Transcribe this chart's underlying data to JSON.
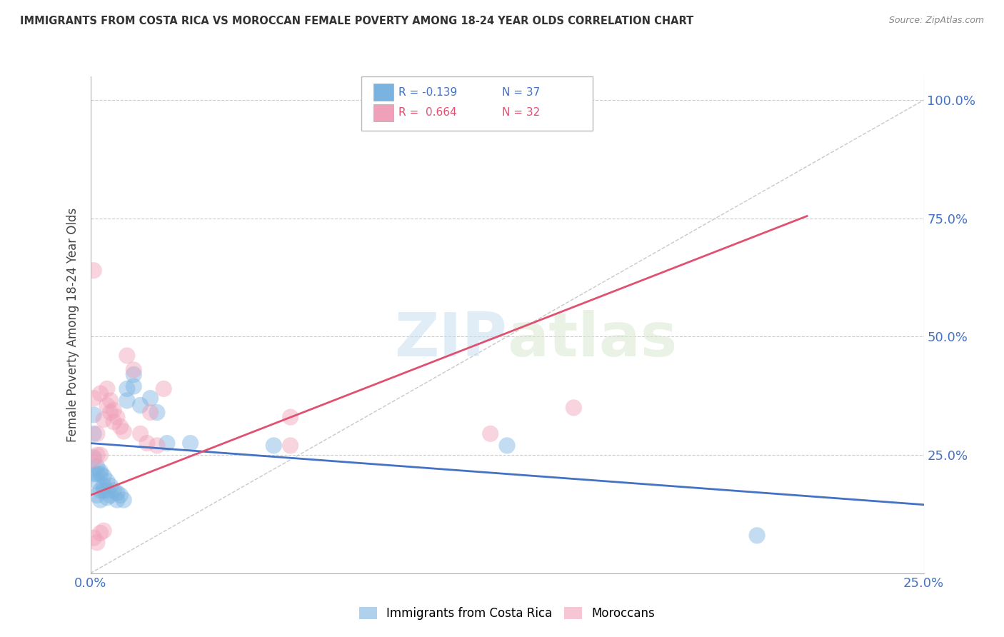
{
  "title": "IMMIGRANTS FROM COSTA RICA VS MOROCCAN FEMALE POVERTY AMONG 18-24 YEAR OLDS CORRELATION CHART",
  "source": "Source: ZipAtlas.com",
  "ylabel": "Female Poverty Among 18-24 Year Olds",
  "legend_label1": "Immigrants from Costa Rica",
  "legend_label2": "Moroccans",
  "blue_color": "#7ab3e0",
  "pink_color": "#f0a0b8",
  "blue_line_color": "#4472c4",
  "pink_line_color": "#e05070",
  "background_color": "#ffffff",
  "grid_color": "#cccccc",
  "axis_label_color": "#4472c4",
  "title_color": "#333333",
  "source_color": "#888888",
  "watermark_color": "#ddeeff",
  "xlim": [
    0.0,
    0.25
  ],
  "ylim": [
    0.0,
    1.05
  ],
  "blue_scatter": [
    [
      0.001,
      0.295
    ],
    [
      0.001,
      0.335
    ],
    [
      0.001,
      0.245
    ],
    [
      0.002,
      0.225
    ],
    [
      0.002,
      0.195
    ],
    [
      0.002,
      0.165
    ],
    [
      0.003,
      0.215
    ],
    [
      0.003,
      0.175
    ],
    [
      0.003,
      0.155
    ],
    [
      0.004,
      0.205
    ],
    [
      0.004,
      0.185
    ],
    [
      0.005,
      0.195
    ],
    [
      0.005,
      0.175
    ],
    [
      0.006,
      0.185
    ],
    [
      0.006,
      0.165
    ],
    [
      0.007,
      0.175
    ],
    [
      0.008,
      0.17
    ],
    [
      0.008,
      0.155
    ],
    [
      0.009,
      0.165
    ],
    [
      0.01,
      0.155
    ],
    [
      0.011,
      0.39
    ],
    [
      0.011,
      0.365
    ],
    [
      0.013,
      0.42
    ],
    [
      0.013,
      0.395
    ],
    [
      0.015,
      0.355
    ],
    [
      0.018,
      0.37
    ],
    [
      0.02,
      0.34
    ],
    [
      0.023,
      0.275
    ],
    [
      0.03,
      0.275
    ],
    [
      0.055,
      0.27
    ],
    [
      0.125,
      0.27
    ],
    [
      0.2,
      0.08
    ],
    [
      0.001,
      0.21
    ],
    [
      0.002,
      0.21
    ],
    [
      0.003,
      0.21
    ],
    [
      0.004,
      0.175
    ],
    [
      0.005,
      0.16
    ]
  ],
  "pink_scatter": [
    [
      0.001,
      0.64
    ],
    [
      0.001,
      0.37
    ],
    [
      0.002,
      0.295
    ],
    [
      0.003,
      0.38
    ],
    [
      0.004,
      0.325
    ],
    [
      0.005,
      0.39
    ],
    [
      0.005,
      0.355
    ],
    [
      0.006,
      0.365
    ],
    [
      0.006,
      0.34
    ],
    [
      0.007,
      0.345
    ],
    [
      0.007,
      0.32
    ],
    [
      0.008,
      0.33
    ],
    [
      0.009,
      0.31
    ],
    [
      0.01,
      0.3
    ],
    [
      0.011,
      0.46
    ],
    [
      0.013,
      0.43
    ],
    [
      0.015,
      0.295
    ],
    [
      0.017,
      0.275
    ],
    [
      0.018,
      0.34
    ],
    [
      0.02,
      0.27
    ],
    [
      0.022,
      0.39
    ],
    [
      0.06,
      0.33
    ],
    [
      0.001,
      0.075
    ],
    [
      0.002,
      0.065
    ],
    [
      0.003,
      0.085
    ],
    [
      0.004,
      0.09
    ],
    [
      0.12,
      0.295
    ],
    [
      0.145,
      0.35
    ],
    [
      0.001,
      0.24
    ],
    [
      0.002,
      0.25
    ],
    [
      0.003,
      0.25
    ],
    [
      0.06,
      0.27
    ]
  ],
  "blue_line_x": [
    0.0,
    0.25
  ],
  "blue_line_y": [
    0.275,
    0.145
  ],
  "pink_line_x": [
    0.0,
    0.215
  ],
  "pink_line_y": [
    0.165,
    0.755
  ],
  "ref_line_x": [
    0.0,
    0.25
  ],
  "ref_line_y": [
    0.0,
    1.0
  ],
  "legend_r1": "R = -0.139",
  "legend_n1": "N = 37",
  "legend_r2": "R =  0.664",
  "legend_n2": "N = 32"
}
